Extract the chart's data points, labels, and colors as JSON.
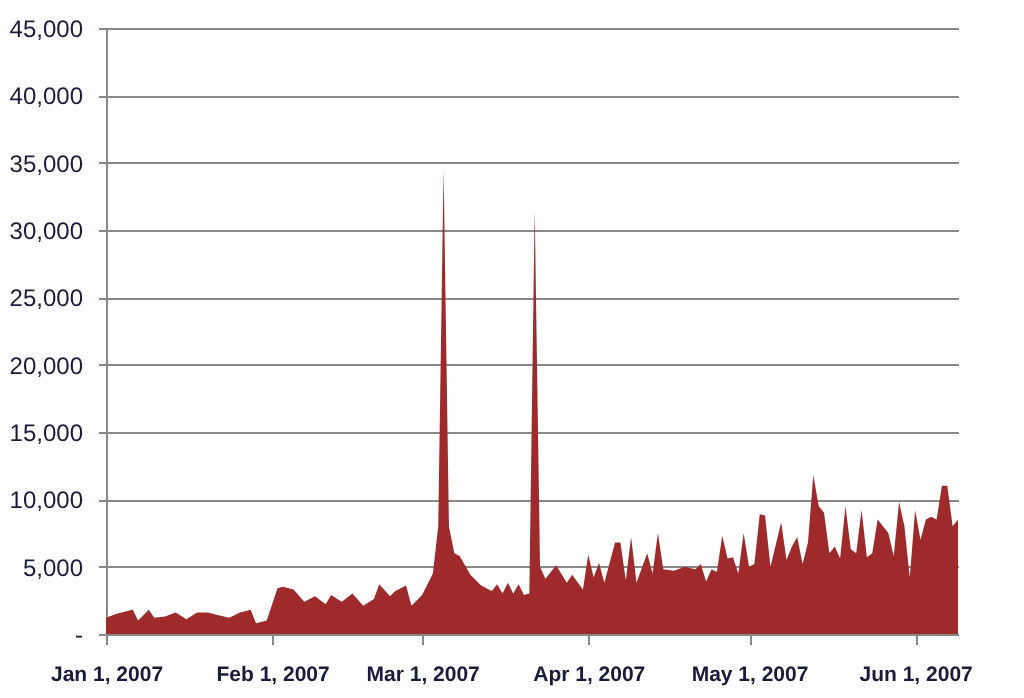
{
  "chart_data": {
    "type": "area",
    "x": [
      "2007-01-01",
      "2007-01-03",
      "2007-01-05",
      "2007-01-06",
      "2007-01-07",
      "2007-01-09",
      "2007-01-10",
      "2007-01-12",
      "2007-01-14",
      "2007-01-16",
      "2007-01-18",
      "2007-01-20",
      "2007-01-22",
      "2007-01-24",
      "2007-01-26",
      "2007-01-28",
      "2007-01-29",
      "2007-01-31",
      "2007-02-02",
      "2007-02-03",
      "2007-02-05",
      "2007-02-07",
      "2007-02-09",
      "2007-02-11",
      "2007-02-12",
      "2007-02-14",
      "2007-02-16",
      "2007-02-18",
      "2007-02-20",
      "2007-02-21",
      "2007-02-23",
      "2007-02-24",
      "2007-02-26",
      "2007-02-27",
      "2007-03-01",
      "2007-03-03",
      "2007-03-04",
      "2007-03-05",
      "2007-03-06",
      "2007-03-07",
      "2007-03-08",
      "2007-03-10",
      "2007-03-12",
      "2007-03-14",
      "2007-03-15",
      "2007-03-16",
      "2007-03-17",
      "2007-03-18",
      "2007-03-19",
      "2007-03-20",
      "2007-03-21",
      "2007-03-22",
      "2007-03-23",
      "2007-03-24",
      "2007-03-26",
      "2007-03-28",
      "2007-03-29",
      "2007-03-31",
      "2007-04-01",
      "2007-04-02",
      "2007-04-03",
      "2007-04-04",
      "2007-04-06",
      "2007-04-07",
      "2007-04-08",
      "2007-04-09",
      "2007-04-10",
      "2007-04-12",
      "2007-04-13",
      "2007-04-14",
      "2007-04-15",
      "2007-04-17",
      "2007-04-19",
      "2007-04-21",
      "2007-04-22",
      "2007-04-23",
      "2007-04-24",
      "2007-04-25",
      "2007-04-26",
      "2007-04-27",
      "2007-04-28",
      "2007-04-29",
      "2007-04-30",
      "2007-05-01",
      "2007-05-02",
      "2007-05-03",
      "2007-05-04",
      "2007-05-05",
      "2007-05-07",
      "2007-05-08",
      "2007-05-09",
      "2007-05-10",
      "2007-05-11",
      "2007-05-12",
      "2007-05-13",
      "2007-05-14",
      "2007-05-15",
      "2007-05-16",
      "2007-05-17",
      "2007-05-18",
      "2007-05-19",
      "2007-05-20",
      "2007-05-21",
      "2007-05-22",
      "2007-05-23",
      "2007-05-24",
      "2007-05-25",
      "2007-05-27",
      "2007-05-28",
      "2007-05-29",
      "2007-05-30",
      "2007-05-31",
      "2007-06-01",
      "2007-06-02",
      "2007-06-03",
      "2007-06-04",
      "2007-06-05",
      "2007-06-06",
      "2007-06-07",
      "2007-06-08",
      "2007-06-09"
    ],
    "values": [
      1200,
      1500,
      1700,
      1800,
      1000,
      1800,
      1200,
      1300,
      1600,
      1100,
      1600,
      1600,
      1400,
      1200,
      1600,
      1800,
      800,
      1000,
      3400,
      3500,
      3300,
      2400,
      2800,
      2200,
      2900,
      2400,
      3000,
      2100,
      2600,
      3700,
      2800,
      3200,
      3600,
      2100,
      2900,
      4500,
      8000,
      34500,
      8000,
      6000,
      5800,
      4400,
      3600,
      3200,
      3700,
      3000,
      3800,
      3000,
      3700,
      2900,
      3000,
      31500,
      5000,
      4100,
      5100,
      3800,
      4400,
      3300,
      5900,
      4200,
      5300,
      3800,
      6800,
      6800,
      4000,
      7200,
      3800,
      6000,
      4500,
      7500,
      4800,
      4700,
      5000,
      4800,
      5200,
      3900,
      4800,
      4600,
      7300,
      5600,
      5700,
      4500,
      7500,
      5000,
      5200,
      8900,
      8800,
      5000,
      8300,
      5500,
      6500,
      7200,
      5200,
      6800,
      11800,
      9500,
      9000,
      6000,
      6500,
      5600,
      9500,
      6300,
      6000,
      9200,
      5700,
      6000,
      8500,
      7500,
      5800,
      9800,
      8000,
      4200,
      9200,
      7000,
      8500,
      8700,
      8500,
      11000,
      11000,
      8000,
      8500
    ],
    "color": "#9e2a2b",
    "xlim": [
      "2007-01-01",
      "2007-06-09"
    ],
    "xticks": [
      {
        "value": "2007-01-01",
        "label": "Jan 1, 2007"
      },
      {
        "value": "2007-02-01",
        "label": "Feb 1, 2007"
      },
      {
        "value": "2007-03-01",
        "label": "Mar 1, 2007"
      },
      {
        "value": "2007-04-01",
        "label": "Apr 1, 2007"
      },
      {
        "value": "2007-05-01",
        "label": "May 1, 2007"
      },
      {
        "value": "2007-06-01",
        "label": "Jun 1, 2007"
      }
    ],
    "ylim": [
      0,
      45000
    ],
    "yticks": [
      {
        "value": 0,
        "label": "-"
      },
      {
        "value": 5000,
        "label": "5,000"
      },
      {
        "value": 10000,
        "label": "10,000"
      },
      {
        "value": 15000,
        "label": "15,000"
      },
      {
        "value": 20000,
        "label": "20,000"
      },
      {
        "value": 25000,
        "label": "25,000"
      },
      {
        "value": 30000,
        "label": "30,000"
      },
      {
        "value": 35000,
        "label": "35,000"
      },
      {
        "value": 40000,
        "label": "40,000"
      },
      {
        "value": 45000,
        "label": "45,000"
      }
    ],
    "grid": "y"
  }
}
